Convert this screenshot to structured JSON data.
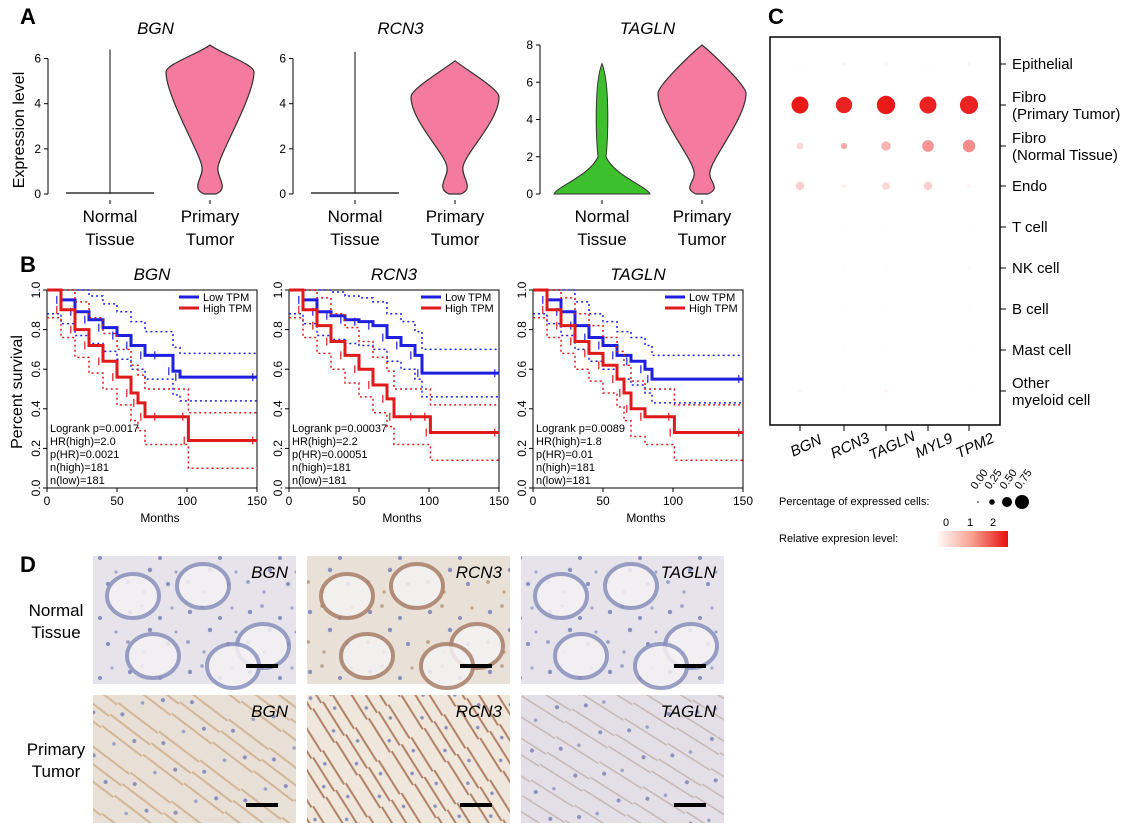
{
  "panel_labels": [
    "A",
    "B",
    "C",
    "D"
  ],
  "panelA": {
    "ylabel": "Expression level",
    "groups": [
      "Normal\nTissue",
      "Primary\nTumor"
    ],
    "plots": [
      {
        "gene": "BGN",
        "yticks": [
          0,
          2,
          4,
          6
        ],
        "ymax": 6.6,
        "normal_max": 6.4,
        "tumor_max": 6.6,
        "normal_fill": "#ffffff",
        "tumor_fill": "#f57aa0"
      },
      {
        "gene": "RCN3",
        "yticks": [
          0,
          2,
          4,
          6
        ],
        "ymax": 6.6,
        "normal_max": 6.3,
        "tumor_max": 5.9,
        "normal_fill": "#ffffff",
        "tumor_fill": "#f57aa0"
      },
      {
        "gene": "TAGLN",
        "yticks": [
          0,
          2,
          4,
          6,
          8
        ],
        "ymax": 8.0,
        "normal_max": 7.0,
        "tumor_max": 8.0,
        "normal_fill": "#3dbf2e",
        "tumor_fill": "#f57aa0"
      }
    ]
  },
  "panelB": {
    "ylabel": "Percent survival",
    "xlabel": "Months",
    "xticks": [
      0,
      50,
      100,
      150
    ],
    "yticks": [
      "0.0",
      "0.2",
      "0.4",
      "0.6",
      "0.8",
      "1.0"
    ],
    "legend": [
      "Low TPM",
      "High TPM"
    ],
    "colors": {
      "low": "#1f1fe0",
      "high": "#e01a1a"
    },
    "plots": [
      {
        "gene": "BGN",
        "annotations": [
          "Logrank p=0.0017",
          "HR(high)=2.0",
          "p(HR)=0.0021",
          "n(high)=181",
          "n(low)=181"
        ],
        "low": [
          [
            0,
            1.0
          ],
          [
            10,
            0.95
          ],
          [
            20,
            0.89
          ],
          [
            30,
            0.85
          ],
          [
            40,
            0.81
          ],
          [
            50,
            0.77
          ],
          [
            60,
            0.72
          ],
          [
            70,
            0.67
          ],
          [
            80,
            0.67
          ],
          [
            90,
            0.59
          ],
          [
            95,
            0.56
          ],
          [
            150,
            0.56
          ]
        ],
        "high": [
          [
            0,
            1.0
          ],
          [
            10,
            0.9
          ],
          [
            20,
            0.8
          ],
          [
            30,
            0.72
          ],
          [
            40,
            0.64
          ],
          [
            50,
            0.56
          ],
          [
            60,
            0.48
          ],
          [
            65,
            0.43
          ],
          [
            70,
            0.36
          ],
          [
            80,
            0.36
          ],
          [
            100,
            0.36
          ],
          [
            101,
            0.24
          ],
          [
            150,
            0.24
          ]
        ]
      },
      {
        "gene": "RCN3",
        "annotations": [
          "Logrank p=0.00037",
          "HR(high)=2.2",
          "p(HR)=0.00051",
          "n(high)=181",
          "n(low)=181"
        ],
        "low": [
          [
            0,
            1.0
          ],
          [
            10,
            0.95
          ],
          [
            20,
            0.89
          ],
          [
            30,
            0.87
          ],
          [
            40,
            0.85
          ],
          [
            50,
            0.84
          ],
          [
            60,
            0.82
          ],
          [
            70,
            0.76
          ],
          [
            80,
            0.72
          ],
          [
            90,
            0.67
          ],
          [
            95,
            0.58
          ],
          [
            150,
            0.58
          ]
        ],
        "high": [
          [
            0,
            1.0
          ],
          [
            10,
            0.9
          ],
          [
            20,
            0.82
          ],
          [
            30,
            0.74
          ],
          [
            40,
            0.67
          ],
          [
            50,
            0.6
          ],
          [
            60,
            0.52
          ],
          [
            70,
            0.45
          ],
          [
            75,
            0.36
          ],
          [
            90,
            0.36
          ],
          [
            100,
            0.36
          ],
          [
            101,
            0.28
          ],
          [
            150,
            0.28
          ]
        ]
      },
      {
        "gene": "TAGLN",
        "annotations": [
          "Logrank p=0.0089",
          "HR(high)=1.8",
          "p(HR)=0.01",
          "n(high)=181",
          "n(low)=181"
        ],
        "low": [
          [
            0,
            1.0
          ],
          [
            10,
            0.95
          ],
          [
            20,
            0.89
          ],
          [
            30,
            0.82
          ],
          [
            40,
            0.76
          ],
          [
            50,
            0.72
          ],
          [
            60,
            0.67
          ],
          [
            70,
            0.64
          ],
          [
            80,
            0.6
          ],
          [
            85,
            0.55
          ],
          [
            150,
            0.55
          ]
        ],
        "high": [
          [
            0,
            1.0
          ],
          [
            10,
            0.9
          ],
          [
            20,
            0.82
          ],
          [
            30,
            0.74
          ],
          [
            40,
            0.68
          ],
          [
            50,
            0.62
          ],
          [
            60,
            0.55
          ],
          [
            65,
            0.48
          ],
          [
            70,
            0.4
          ],
          [
            80,
            0.36
          ],
          [
            100,
            0.36
          ],
          [
            101,
            0.28
          ],
          [
            150,
            0.28
          ]
        ]
      }
    ]
  },
  "panelC": {
    "rows": [
      "Epithelial",
      "Fibro\n(Primary Tumor)",
      "Fibro\n (Normal Tissue)",
      "Endo",
      "T cell",
      "NK cell",
      "B cell",
      "Mast cell",
      "Other\nmyeloid cell"
    ],
    "columns": [
      "BGN",
      "RCN3",
      "TAGLN",
      "MYL9",
      "TPM2"
    ],
    "pct": [
      [
        0.02,
        0.02,
        0.02,
        0.02,
        0.03
      ],
      [
        0.6,
        0.55,
        0.7,
        0.6,
        0.68
      ],
      [
        0.1,
        0.08,
        0.18,
        0.28,
        0.32
      ],
      [
        0.15,
        0.03,
        0.12,
        0.15,
        0.04
      ],
      [
        0.02,
        0.02,
        0.02,
        0.02,
        0.02
      ],
      [
        0.02,
        0.02,
        0.02,
        0.02,
        0.02
      ],
      [
        0.02,
        0.02,
        0.02,
        0.02,
        0.02
      ],
      [
        0.02,
        0.02,
        0.02,
        0.02,
        0.02
      ],
      [
        0.02,
        0.02,
        0.03,
        0.02,
        0.02
      ]
    ],
    "expr": [
      [
        0.1,
        0.1,
        0.1,
        0.1,
        0.1
      ],
      [
        2.4,
        2.3,
        2.4,
        2.3,
        2.3
      ],
      [
        0.4,
        0.9,
        0.8,
        1.1,
        1.2
      ],
      [
        0.5,
        0.2,
        0.4,
        0.5,
        0.1
      ],
      [
        0.05,
        0.05,
        0.05,
        0.05,
        0.05
      ],
      [
        0.05,
        0.05,
        0.05,
        0.05,
        0.05
      ],
      [
        0.05,
        0.05,
        0.05,
        0.05,
        0.05
      ],
      [
        0.05,
        0.05,
        0.05,
        0.05,
        0.05
      ],
      [
        0.1,
        0.05,
        0.1,
        0.05,
        0.05
      ]
    ],
    "size_legend_title": "Percentage of expressed cells:",
    "size_legend_values": [
      "0.00",
      "0.25",
      "0.50",
      "0.75"
    ],
    "color_legend_title": "Relative expresion level:",
    "color_legend_values": [
      "0",
      "1",
      "2"
    ]
  },
  "panelD": {
    "rows": [
      "Normal\nTissue",
      "Primary\nTumor"
    ],
    "genes": [
      "BGN",
      "RCN3",
      "TAGLN"
    ]
  }
}
